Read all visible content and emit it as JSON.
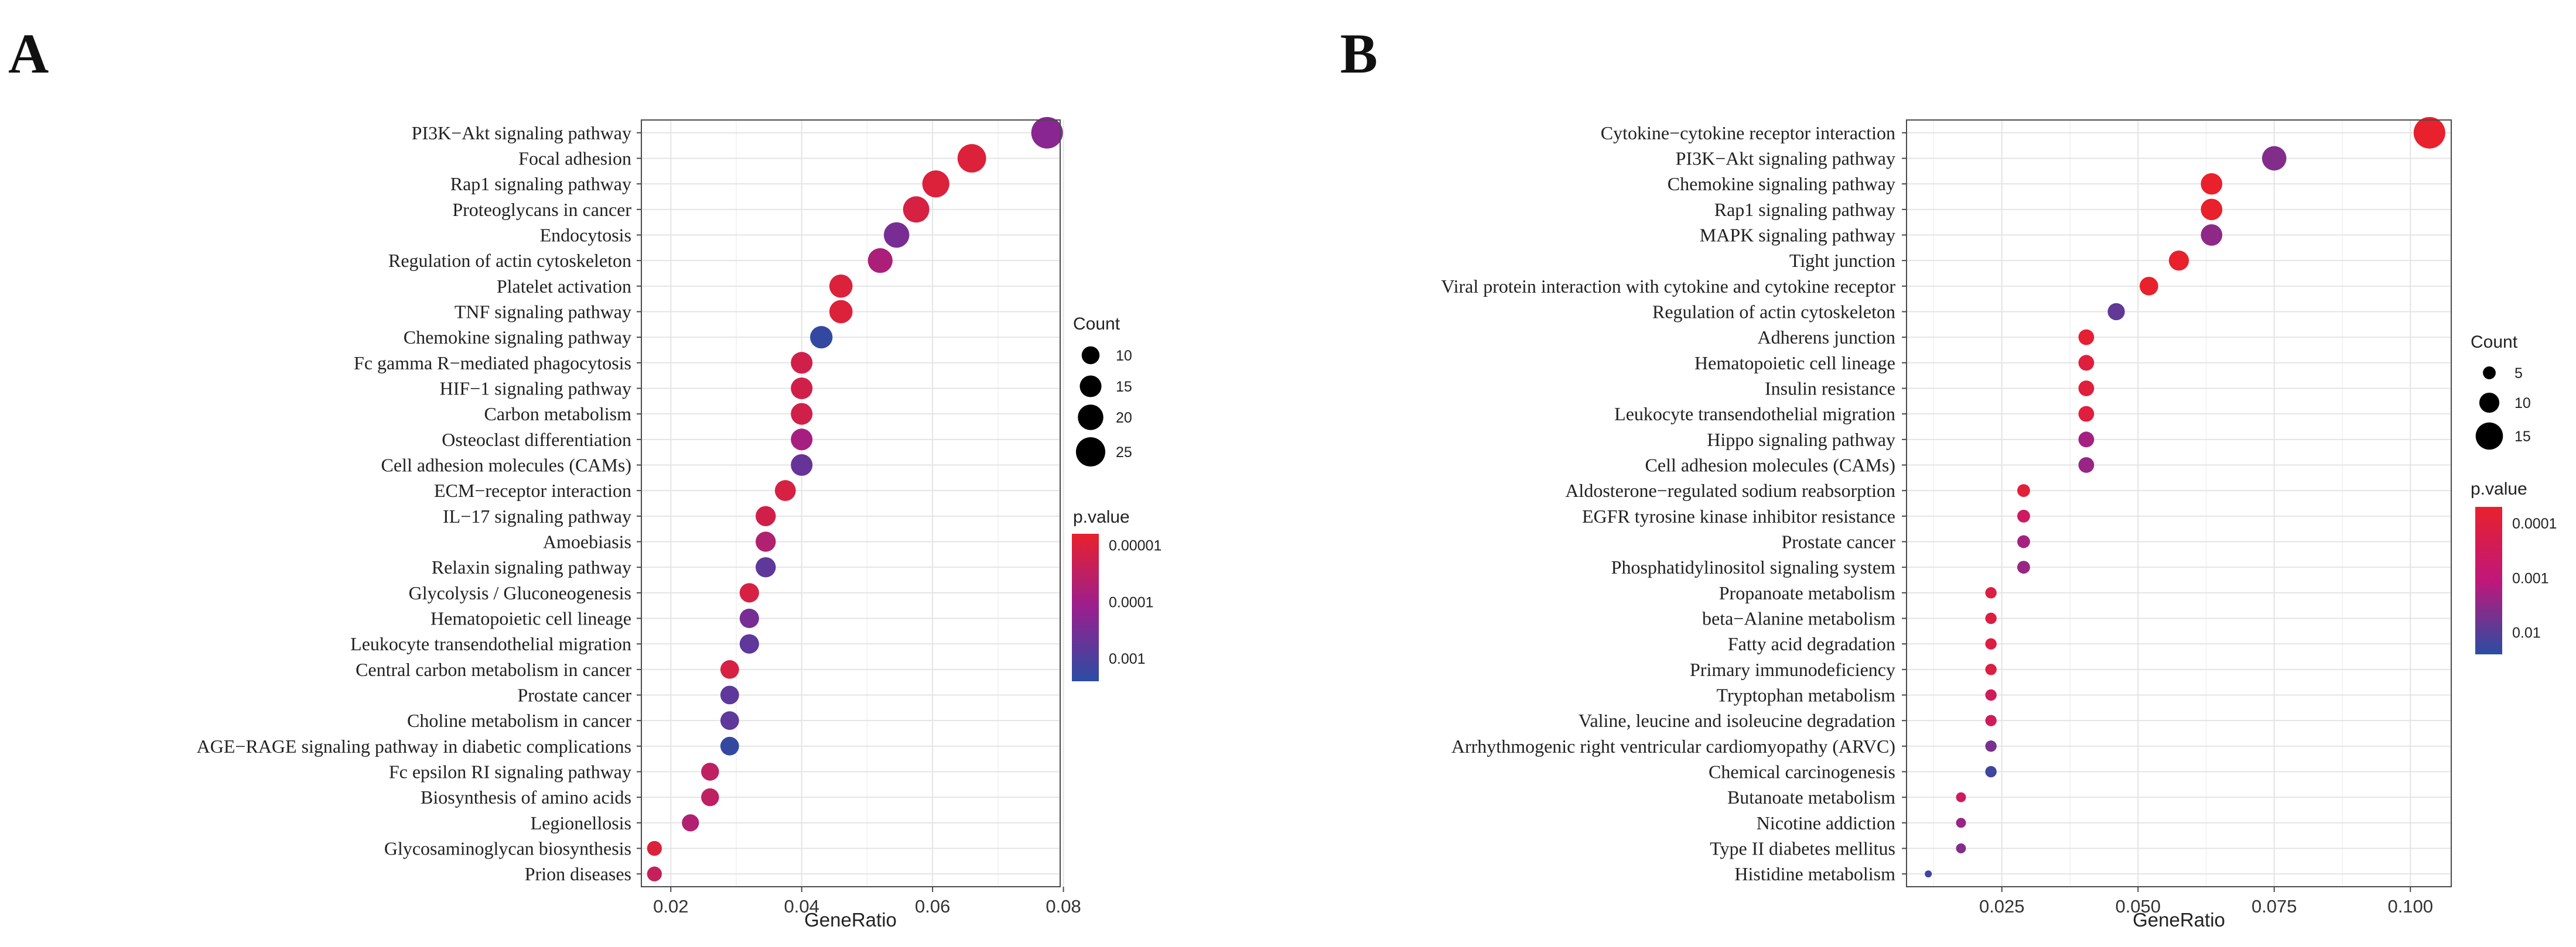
{
  "chart_data": [
    {
      "panel": "A",
      "type": "scatter",
      "subtype": "dot-plot",
      "xlabel": "GeneRatio",
      "xlim": [
        0.0155,
        0.0795
      ],
      "xticks": [
        0.02,
        0.04,
        0.06,
        0.08
      ],
      "xtick_labels": [
        "0.02",
        "0.04",
        "0.06",
        "0.08"
      ],
      "size_legend": {
        "title": "Count",
        "values": [
          10,
          15,
          20,
          25
        ],
        "labels": [
          "10",
          "15",
          "20",
          "25"
        ]
      },
      "color_legend": {
        "title": "p.value",
        "labels": [
          "0.00001",
          "0.0001",
          "0.001"
        ],
        "tick_log10": [
          -5,
          -4,
          -3
        ],
        "range_log10": [
          -5.2,
          -2.6
        ],
        "low_color": "#e8212c",
        "mid_color": "#9a1f8f",
        "high_color": "#2a4da3"
      },
      "points": [
        {
          "label": "PI3K−Akt signaling pathway",
          "x": 0.0775,
          "count": 28,
          "log10p": -3.7
        },
        {
          "label": "Focal adhesion",
          "x": 0.066,
          "count": 24,
          "log10p": -5.0
        },
        {
          "label": "Rap1 signaling pathway",
          "x": 0.0605,
          "count": 22,
          "log10p": -5.0
        },
        {
          "label": "Proteoglycans in cancer",
          "x": 0.0575,
          "count": 21,
          "log10p": -4.9
        },
        {
          "label": "Endocytosis",
          "x": 0.0545,
          "count": 20,
          "log10p": -3.5
        },
        {
          "label": "Regulation of actin cytoskeleton",
          "x": 0.052,
          "count": 19,
          "log10p": -4.2
        },
        {
          "label": "Platelet activation",
          "x": 0.046,
          "count": 17,
          "log10p": -5.0
        },
        {
          "label": "TNF signaling pathway",
          "x": 0.046,
          "count": 17,
          "log10p": -5.0
        },
        {
          "label": "Chemokine signaling pathway",
          "x": 0.043,
          "count": 16,
          "log10p": -2.7
        },
        {
          "label": "Fc gamma R−mediated phagocytosis",
          "x": 0.04,
          "count": 15,
          "log10p": -4.8
        },
        {
          "label": "HIF−1 signaling pathway",
          "x": 0.04,
          "count": 15,
          "log10p": -4.8
        },
        {
          "label": "Carbon metabolism",
          "x": 0.04,
          "count": 15,
          "log10p": -4.8
        },
        {
          "label": "Osteoclast differentiation",
          "x": 0.04,
          "count": 15,
          "log10p": -4.1
        },
        {
          "label": "Cell adhesion molecules (CAMs)",
          "x": 0.04,
          "count": 15,
          "log10p": -3.3
        },
        {
          "label": "ECM−receptor interaction",
          "x": 0.0375,
          "count": 14,
          "log10p": -4.9
        },
        {
          "label": "IL−17 signaling pathway",
          "x": 0.0345,
          "count": 13,
          "log10p": -4.8
        },
        {
          "label": "Amoebiasis",
          "x": 0.0345,
          "count": 13,
          "log10p": -4.3
        },
        {
          "label": "Relaxin signaling pathway",
          "x": 0.0345,
          "count": 13,
          "log10p": -3.2
        },
        {
          "label": "Glycolysis / Gluconeogenesis",
          "x": 0.032,
          "count": 12,
          "log10p": -4.9
        },
        {
          "label": "Hematopoietic cell lineage",
          "x": 0.032,
          "count": 12,
          "log10p": -3.5
        },
        {
          "label": "Leukocyte transendothelial migration",
          "x": 0.032,
          "count": 12,
          "log10p": -3.2
        },
        {
          "label": "Central carbon metabolism in cancer",
          "x": 0.029,
          "count": 11,
          "log10p": -4.9
        },
        {
          "label": "Prostate cancer",
          "x": 0.029,
          "count": 11,
          "log10p": -3.2
        },
        {
          "label": "Choline metabolism in cancer",
          "x": 0.029,
          "count": 11,
          "log10p": -3.2
        },
        {
          "label": "AGE−RAGE signaling pathway in diabetic complications",
          "x": 0.029,
          "count": 11,
          "log10p": -2.7
        },
        {
          "label": "Fc epsilon RI signaling pathway",
          "x": 0.026,
          "count": 10,
          "log10p": -4.5
        },
        {
          "label": "Biosynthesis of amino acids",
          "x": 0.026,
          "count": 10,
          "log10p": -4.5
        },
        {
          "label": "Legionellosis",
          "x": 0.023,
          "count": 9,
          "log10p": -4.3
        },
        {
          "label": "Glycosaminoglycan biosynthesis",
          "x": 0.0175,
          "count": 6,
          "log10p": -5.0
        },
        {
          "label": "Prion diseases",
          "x": 0.0175,
          "count": 6,
          "log10p": -4.6
        }
      ]
    },
    {
      "panel": "B",
      "type": "scatter",
      "subtype": "dot-plot",
      "xlabel": "GeneRatio",
      "xlim": [
        0.0075,
        0.1075
      ],
      "xticks": [
        0.025,
        0.05,
        0.075,
        0.1
      ],
      "xtick_labels": [
        "0.025",
        "0.050",
        "0.075",
        "0.100"
      ],
      "size_legend": {
        "title": "Count",
        "values": [
          5,
          10,
          15
        ],
        "labels": [
          "5",
          "10",
          "15"
        ]
      },
      "color_legend": {
        "title": "p.value",
        "labels": [
          "0.0001",
          "0.001",
          "0.01"
        ],
        "tick_log10": [
          -4,
          -3,
          -2
        ],
        "range_log10": [
          -4.3,
          -1.6
        ],
        "low_color": "#e8212c",
        "mid_color": "#c0177a",
        "high_color": "#2a4da3"
      },
      "points": [
        {
          "label": "Cytokine−cytokine receptor interaction",
          "x": 0.1035,
          "count": 18,
          "log10p": -4.4
        },
        {
          "label": "PI3K−Akt signaling pathway",
          "x": 0.075,
          "count": 13,
          "log10p": -2.4
        },
        {
          "label": "Chemokine signaling pathway",
          "x": 0.0635,
          "count": 11,
          "log10p": -4.4
        },
        {
          "label": "Rap1 signaling pathway",
          "x": 0.0635,
          "count": 11,
          "log10p": -4.4
        },
        {
          "label": "MAPK signaling pathway",
          "x": 0.0635,
          "count": 11,
          "log10p": -2.5
        },
        {
          "label": "Tight junction",
          "x": 0.0575,
          "count": 10,
          "log10p": -4.3
        },
        {
          "label": "Viral protein interaction with cytokine and cytokine receptor",
          "x": 0.052,
          "count": 9,
          "log10p": -4.3
        },
        {
          "label": "Regulation of actin cytoskeleton",
          "x": 0.046,
          "count": 8,
          "log10p": -2.1
        },
        {
          "label": "Adherens junction",
          "x": 0.0405,
          "count": 7,
          "log10p": -4.2
        },
        {
          "label": "Hematopoietic cell lineage",
          "x": 0.0405,
          "count": 7,
          "log10p": -4.0
        },
        {
          "label": "Insulin resistance",
          "x": 0.0405,
          "count": 7,
          "log10p": -4.0
        },
        {
          "label": "Leukocyte transendothelial migration",
          "x": 0.0405,
          "count": 7,
          "log10p": -4.0
        },
        {
          "label": "Hippo signaling pathway",
          "x": 0.0405,
          "count": 7,
          "log10p": -2.7
        },
        {
          "label": "Cell adhesion molecules (CAMs)",
          "x": 0.0405,
          "count": 7,
          "log10p": -2.6
        },
        {
          "label": "Aldosterone−regulated sodium reabsorption",
          "x": 0.029,
          "count": 5,
          "log10p": -4.1
        },
        {
          "label": "EGFR tyrosine kinase inhibitor resistance",
          "x": 0.029,
          "count": 5,
          "log10p": -3.4
        },
        {
          "label": "Prostate cancer",
          "x": 0.029,
          "count": 5,
          "log10p": -2.7
        },
        {
          "label": "Phosphatidylinositol signaling system",
          "x": 0.029,
          "count": 5,
          "log10p": -2.6
        },
        {
          "label": "Propanoate metabolism",
          "x": 0.023,
          "count": 4,
          "log10p": -3.9
        },
        {
          "label": "beta−Alanine metabolism",
          "x": 0.023,
          "count": 4,
          "log10p": -3.9
        },
        {
          "label": "Fatty acid degradation",
          "x": 0.023,
          "count": 4,
          "log10p": -3.9
        },
        {
          "label": "Primary immunodeficiency",
          "x": 0.023,
          "count": 4,
          "log10p": -3.9
        },
        {
          "label": "Tryptophan metabolism",
          "x": 0.023,
          "count": 4,
          "log10p": -3.5
        },
        {
          "label": "Valine, leucine and isoleucine degradation",
          "x": 0.023,
          "count": 4,
          "log10p": -3.5
        },
        {
          "label": "Arrhythmogenic right ventricular cardiomyopathy (ARVC)",
          "x": 0.023,
          "count": 4,
          "log10p": -2.3
        },
        {
          "label": "Chemical carcinogenesis",
          "x": 0.023,
          "count": 4,
          "log10p": -1.8
        },
        {
          "label": "Butanoate metabolism",
          "x": 0.0175,
          "count": 3,
          "log10p": -3.4
        },
        {
          "label": "Nicotine addiction",
          "x": 0.0175,
          "count": 3,
          "log10p": -2.6
        },
        {
          "label": "Type II diabetes mellitus",
          "x": 0.0175,
          "count": 3,
          "log10p": -2.4
        },
        {
          "label": "Histidine metabolism",
          "x": 0.0115,
          "count": 1,
          "log10p": -1.8
        }
      ]
    }
  ]
}
